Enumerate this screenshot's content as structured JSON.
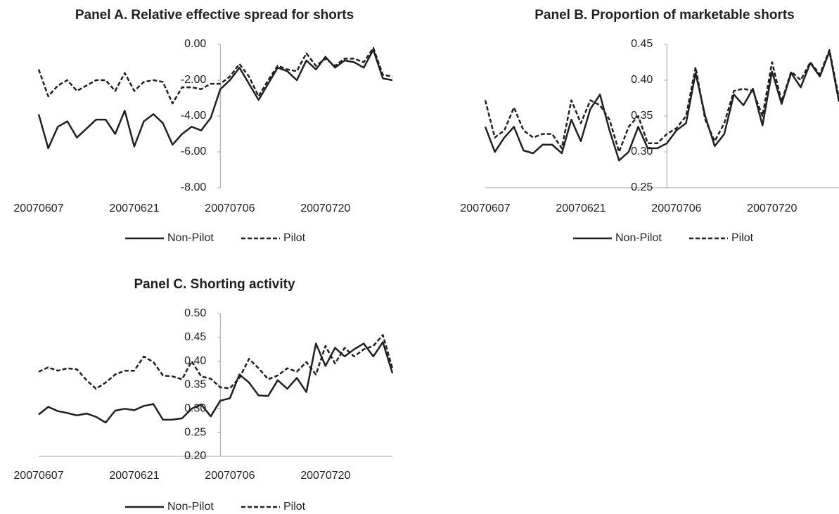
{
  "chart_data": [
    {
      "type": "line",
      "title": "Panel A. Relative effective spread for shorts",
      "categories": [
        "20070607",
        null,
        null,
        null,
        null,
        null,
        null,
        null,
        null,
        null,
        "20070621",
        null,
        null,
        null,
        null,
        null,
        null,
        null,
        null,
        null,
        "20070706",
        null,
        null,
        null,
        null,
        null,
        null,
        null,
        null,
        null,
        "20070720",
        null,
        null,
        null,
        null,
        null,
        null,
        null
      ],
      "series": [
        {
          "name": "Non-Pilot",
          "color": "#231f20",
          "dashed": false,
          "values": [
            -3.9,
            -5.8,
            -4.6,
            -4.3,
            -5.2,
            -4.7,
            -4.2,
            -4.2,
            -5.0,
            -3.7,
            -5.7,
            -4.3,
            -3.9,
            -4.4,
            -5.6,
            -5.0,
            -4.6,
            -4.8,
            -4.1,
            -2.5,
            -2.0,
            -1.3,
            -2.2,
            -3.1,
            -2.2,
            -1.3,
            -1.5,
            -2.0,
            -0.9,
            -1.4,
            -0.7,
            -1.3,
            -0.9,
            -1.0,
            -1.3,
            -0.3,
            -1.9,
            -2.0
          ]
        },
        {
          "name": "Pilot",
          "color": "#231f20",
          "dashed": true,
          "values": [
            -1.4,
            -2.9,
            -2.3,
            -2.0,
            -2.6,
            -2.3,
            -2.0,
            -2.0,
            -2.6,
            -1.6,
            -2.6,
            -2.1,
            -2.0,
            -2.1,
            -3.3,
            -2.4,
            -2.4,
            -2.5,
            -2.2,
            -2.2,
            -1.8,
            -1.1,
            -1.8,
            -2.9,
            -2.0,
            -1.2,
            -1.4,
            -1.5,
            -0.5,
            -1.2,
            -0.8,
            -1.2,
            -0.8,
            -0.8,
            -1.0,
            -0.2,
            -1.7,
            -1.8
          ]
        }
      ],
      "ylim": [
        -8,
        0
      ],
      "yticks": [
        {
          "value": 0,
          "label": "0.00"
        },
        {
          "value": -2,
          "label": "-2.00"
        },
        {
          "value": -4,
          "label": "-4.00"
        },
        {
          "value": -6,
          "label": "-6.00"
        },
        {
          "value": -8,
          "label": "-8.00"
        }
      ],
      "x_axis_line": false
    },
    {
      "type": "line",
      "title": "Panel B. Proportion of marketable shorts",
      "categories": [
        "20070607",
        null,
        null,
        null,
        null,
        null,
        null,
        null,
        null,
        null,
        "20070621",
        null,
        null,
        null,
        null,
        null,
        null,
        null,
        null,
        null,
        "20070706",
        null,
        null,
        null,
        null,
        null,
        null,
        null,
        null,
        null,
        "20070720",
        null,
        null,
        null,
        null,
        null,
        null,
        null
      ],
      "series": [
        {
          "name": "Non-Pilot",
          "color": "#231f20",
          "dashed": false,
          "values": [
            0.335,
            0.3,
            0.32,
            0.335,
            0.302,
            0.298,
            0.31,
            0.31,
            0.298,
            0.345,
            0.315,
            0.36,
            0.38,
            0.33,
            0.288,
            0.3,
            0.335,
            0.305,
            0.305,
            0.312,
            0.33,
            0.34,
            0.41,
            0.35,
            0.308,
            0.325,
            0.38,
            0.365,
            0.388,
            0.337,
            0.412,
            0.367,
            0.41,
            0.39,
            0.424,
            0.405,
            0.44,
            0.37
          ]
        },
        {
          "name": "Pilot",
          "color": "#231f20",
          "dashed": true,
          "values": [
            0.372,
            0.32,
            0.33,
            0.362,
            0.33,
            0.32,
            0.325,
            0.325,
            0.305,
            0.372,
            0.34,
            0.372,
            0.365,
            0.345,
            0.3,
            0.335,
            0.35,
            0.312,
            0.312,
            0.325,
            0.333,
            0.35,
            0.418,
            0.345,
            0.315,
            0.34,
            0.385,
            0.388,
            0.385,
            0.35,
            0.425,
            0.37,
            0.412,
            0.4,
            0.425,
            0.408,
            0.442,
            0.375
          ]
        }
      ],
      "ylim": [
        0.25,
        0.45
      ],
      "yticks": [
        0.45,
        {
          "value": 0.4,
          "label": "0.40"
        },
        0.35,
        {
          "value": 0.3,
          "label": "0.30"
        },
        0.25
      ],
      "x_axis_line": true
    },
    {
      "type": "line",
      "title": "Panel C. Shorting activity",
      "categories": [
        "20070607",
        null,
        null,
        null,
        null,
        null,
        null,
        null,
        null,
        null,
        "20070621",
        null,
        null,
        null,
        null,
        null,
        null,
        null,
        null,
        null,
        "20070706",
        null,
        null,
        null,
        null,
        null,
        null,
        null,
        null,
        null,
        "20070720",
        null,
        null,
        null,
        null,
        null,
        null,
        null
      ],
      "series": [
        {
          "name": "Non-Pilot",
          "color": "#231f20",
          "dashed": false,
          "values": [
            0.288,
            0.304,
            0.295,
            0.291,
            0.286,
            0.29,
            0.283,
            0.271,
            0.296,
            0.3,
            0.297,
            0.306,
            0.31,
            0.277,
            0.277,
            0.28,
            0.3,
            0.309,
            0.284,
            0.317,
            0.322,
            0.372,
            0.355,
            0.328,
            0.327,
            0.36,
            0.342,
            0.365,
            0.335,
            0.437,
            0.39,
            0.428,
            0.41,
            0.425,
            0.437,
            0.41,
            0.44,
            0.375
          ]
        },
        {
          "name": "Pilot",
          "color": "#231f20",
          "dashed": true,
          "values": [
            0.378,
            0.387,
            0.38,
            0.385,
            0.383,
            0.36,
            0.342,
            0.355,
            0.372,
            0.38,
            0.38,
            0.41,
            0.398,
            0.37,
            0.368,
            0.362,
            0.4,
            0.368,
            0.363,
            0.345,
            0.343,
            0.365,
            0.405,
            0.385,
            0.362,
            0.37,
            0.385,
            0.378,
            0.398,
            0.372,
            0.432,
            0.395,
            0.428,
            0.41,
            0.425,
            0.432,
            0.455,
            0.385
          ]
        }
      ],
      "ylim": [
        0.2,
        0.5
      ],
      "yticks": [
        {
          "value": 0.5,
          "label": "0.50"
        },
        0.45,
        {
          "value": 0.4,
          "label": "0.40"
        },
        0.35,
        {
          "value": 0.3,
          "label": "0.30"
        },
        0.25,
        {
          "value": 0.2,
          "label": "0.20"
        }
      ],
      "x_axis_line": true
    }
  ]
}
